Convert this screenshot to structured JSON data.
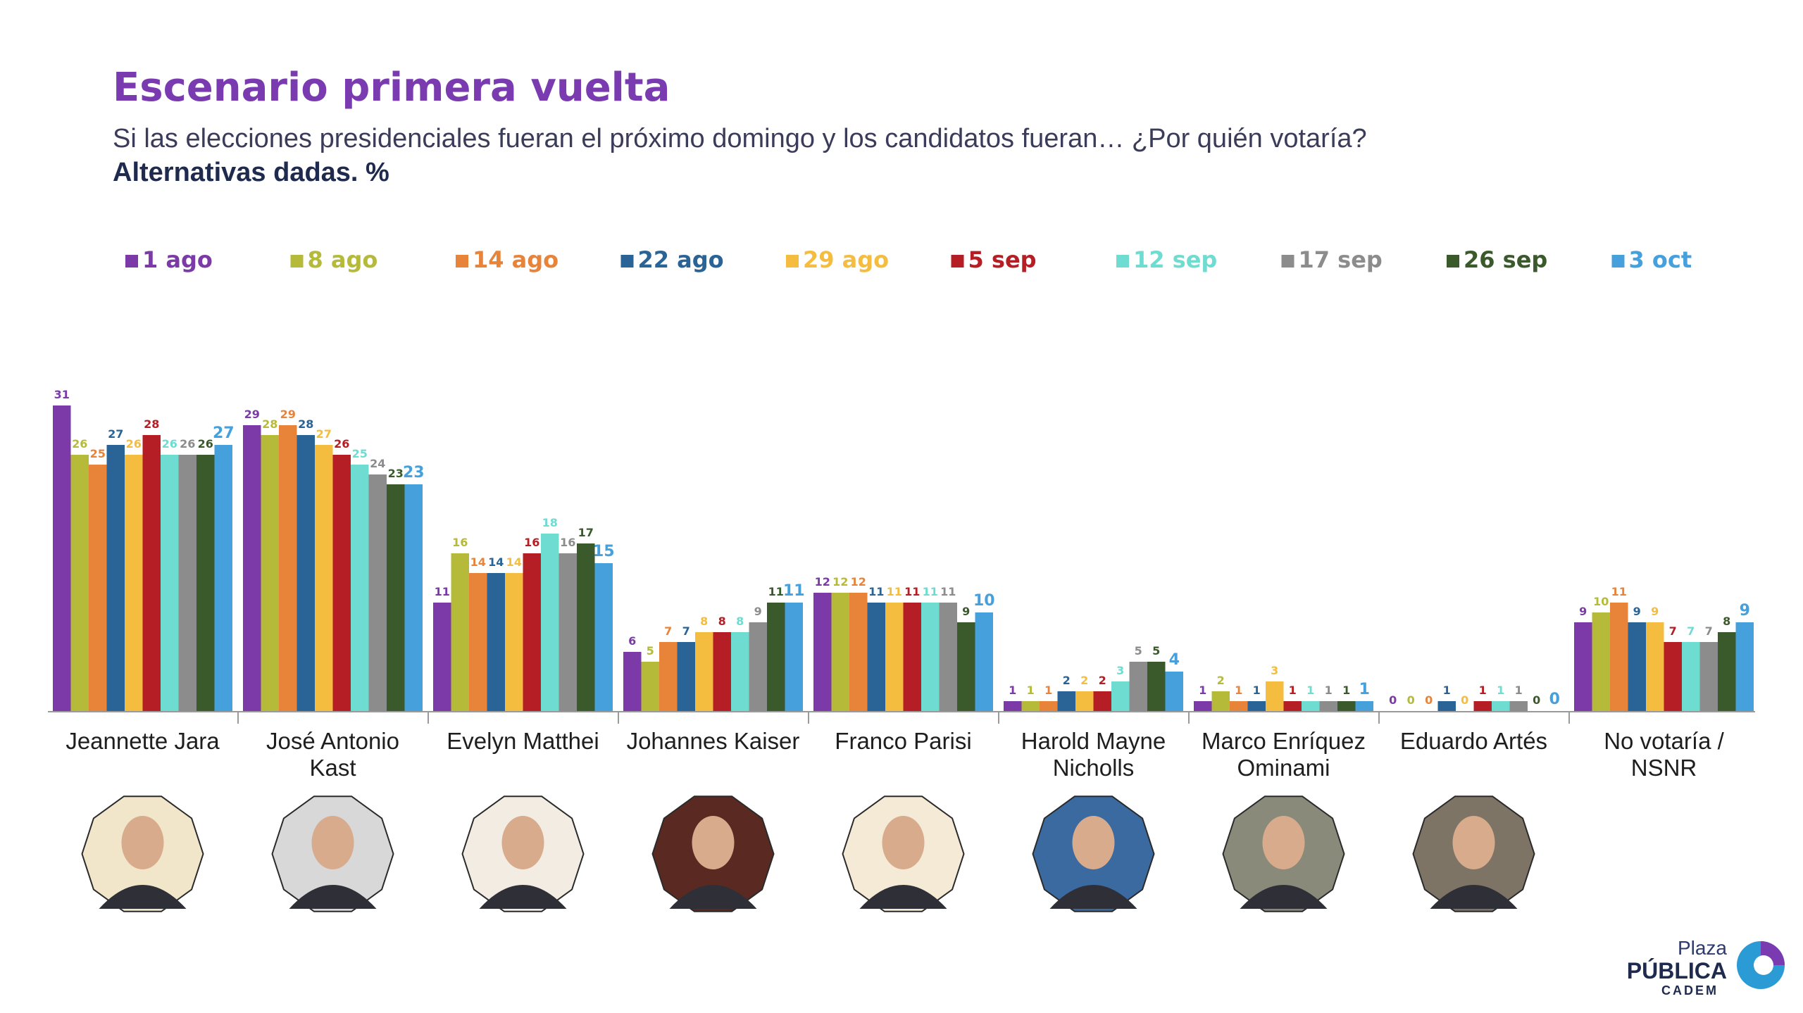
{
  "title": "Escenario primera vuelta",
  "subtitle": "Si las elecciones presidenciales fueran el próximo domingo y los candidatos fueran… ¿Por quién votaría?",
  "subtitle2": "Alternativas dadas. %",
  "colors": [
    "#7b3aa8",
    "#b5bb38",
    "#e8833a",
    "#2a6496",
    "#f5bd3f",
    "#b51e24",
    "#6fdcd1",
    "#8c8c8c",
    "#3a5a2c",
    "#45a0dc"
  ],
  "chart_data": {
    "type": "bar",
    "legend_position": "top",
    "grid": false,
    "ylim": [
      0,
      33
    ],
    "categories": [
      [
        "Jeannette Jara"
      ],
      [
        "José Antonio",
        "Kast"
      ],
      [
        "Evelyn Matthei"
      ],
      [
        "Johannes Kaiser"
      ],
      [
        "Franco Parisi"
      ],
      [
        "Harold Mayne",
        "Nicholls"
      ],
      [
        "Marco Enríquez",
        "Ominami"
      ],
      [
        "Eduardo Artés"
      ],
      [
        "No votaría /",
        "NSNR"
      ]
    ],
    "series": [
      {
        "name": "1 ago",
        "values": [
          31,
          29,
          11,
          6,
          12,
          1,
          1,
          0,
          9
        ]
      },
      {
        "name": "8 ago",
        "values": [
          26,
          28,
          16,
          5,
          12,
          1,
          2,
          0,
          10
        ]
      },
      {
        "name": "14 ago",
        "values": [
          25,
          29,
          14,
          7,
          12,
          1,
          1,
          0,
          11
        ]
      },
      {
        "name": "22 ago",
        "values": [
          27,
          28,
          14,
          7,
          11,
          2,
          1,
          1,
          9
        ]
      },
      {
        "name": "29 ago",
        "values": [
          26,
          27,
          14,
          8,
          11,
          2,
          3,
          0,
          9
        ]
      },
      {
        "name": "5 sep",
        "values": [
          28,
          26,
          16,
          8,
          11,
          2,
          1,
          1,
          7
        ]
      },
      {
        "name": "12 sep",
        "values": [
          26,
          25,
          18,
          8,
          11,
          3,
          1,
          1,
          7
        ]
      },
      {
        "name": "17 sep",
        "values": [
          26,
          24,
          16,
          9,
          11,
          5,
          1,
          1,
          7
        ]
      },
      {
        "name": "26 sep",
        "values": [
          26,
          23,
          17,
          11,
          9,
          5,
          1,
          0,
          8
        ]
      },
      {
        "name": "3 oct",
        "values": [
          27,
          23,
          15,
          11,
          10,
          4,
          1,
          0,
          9
        ]
      }
    ]
  },
  "logo": {
    "line1": "Plaza",
    "line2": "PÚBLICA",
    "line3": "CADEM"
  }
}
